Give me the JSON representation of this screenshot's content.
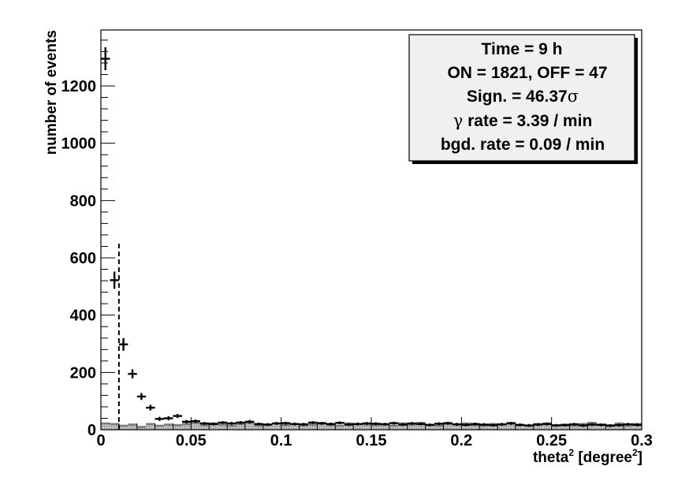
{
  "chart_data": {
    "type": "scatter",
    "title": "",
    "xlabel": {
      "base": "theta",
      "sup1": "2",
      "mid": " [degree",
      "sup2": "2",
      "end": "]"
    },
    "ylabel": "number of events",
    "xlim": [
      0,
      0.3
    ],
    "ylim": [
      0,
      1400
    ],
    "x_ticks": [
      0,
      0.05,
      0.1,
      0.15,
      0.2,
      0.25,
      0.3
    ],
    "x_tick_labels": [
      "0",
      "0.05",
      "0.1",
      "0.15",
      "0.2",
      "0.25",
      "0.3"
    ],
    "y_ticks": [
      0,
      200,
      400,
      600,
      800,
      1000,
      1200
    ],
    "y_tick_labels": [
      "0",
      "200",
      "400",
      "600",
      "800",
      "1000",
      "1200"
    ],
    "bin_width": 0.005,
    "cut_value": 0.01,
    "cut_line_top": 660,
    "series": [
      {
        "kind": "on_points",
        "x": [
          0.0025,
          0.0075,
          0.0125,
          0.0175,
          0.0225,
          0.0275,
          0.0325,
          0.0375,
          0.0425,
          0.0475,
          0.0525,
          0.0575,
          0.0625,
          0.0675,
          0.0725,
          0.0775,
          0.0825,
          0.0875,
          0.0925,
          0.0975,
          0.1025,
          0.1075,
          0.1125,
          0.1175,
          0.1225,
          0.1275,
          0.1325,
          0.1375,
          0.1425,
          0.1475,
          0.1525,
          0.1575,
          0.1625,
          0.1675,
          0.1725,
          0.1775,
          0.1825,
          0.1875,
          0.1925,
          0.1975,
          0.2025,
          0.2075,
          0.2125,
          0.2175,
          0.2225,
          0.2275,
          0.2325,
          0.2375,
          0.2425,
          0.2475,
          0.2525,
          0.2575,
          0.2625,
          0.2675,
          0.2725,
          0.2775,
          0.2825,
          0.2875,
          0.2925,
          0.2975
        ],
        "y": [
          1295,
          522,
          298,
          195,
          116,
          77,
          38,
          40,
          48,
          28,
          30,
          22,
          20,
          25,
          22,
          25,
          28,
          20,
          18,
          22,
          23,
          20,
          19,
          25,
          22,
          20,
          24,
          18,
          20,
          22,
          21,
          19,
          23,
          18,
          22,
          20,
          17,
          21,
          23,
          19,
          17,
          20,
          18,
          16,
          19,
          22,
          17,
          15,
          18,
          20,
          15,
          16,
          19,
          15,
          18,
          17,
          14,
          16,
          19,
          17
        ],
        "err": [
          40,
          30,
          22,
          16,
          12,
          10,
          7,
          7,
          7,
          6,
          6,
          5,
          5,
          5,
          5,
          5,
          6,
          5,
          5,
          5,
          5,
          5,
          5,
          5,
          5,
          5,
          5,
          5,
          5,
          5,
          5,
          5,
          5,
          5,
          5,
          5,
          5,
          5,
          5,
          5,
          5,
          5,
          5,
          5,
          5,
          5,
          5,
          5,
          5,
          5,
          5,
          5,
          5,
          5,
          5,
          5,
          5,
          5,
          5,
          5
        ]
      },
      {
        "kind": "off_histogram",
        "values": [
          22,
          20,
          14,
          18,
          10,
          20,
          14,
          18,
          16,
          20,
          24,
          16,
          22,
          18,
          14,
          20,
          24,
          14,
          18,
          22,
          16,
          20,
          14,
          18,
          24,
          16,
          14,
          22,
          20,
          18,
          16,
          20,
          14,
          22,
          18,
          24,
          16,
          14,
          20,
          18,
          22,
          16,
          14,
          20,
          18,
          24,
          16,
          14,
          20,
          22,
          16,
          18,
          14,
          20,
          24,
          18,
          16,
          22,
          14,
          20
        ]
      }
    ],
    "legend_position": "top-right",
    "legend": [
      {
        "pre": "Time = 9 h"
      },
      {
        "pre": "ON = 1821, OFF = 47"
      },
      {
        "pre": "Sign. = 46.37",
        "sym": "σ",
        "post": ""
      },
      {
        "pre": "",
        "sym": "γ",
        "post": " rate = 3.39 / min"
      },
      {
        "pre": "bgd. rate = 0.09 / min"
      }
    ]
  }
}
